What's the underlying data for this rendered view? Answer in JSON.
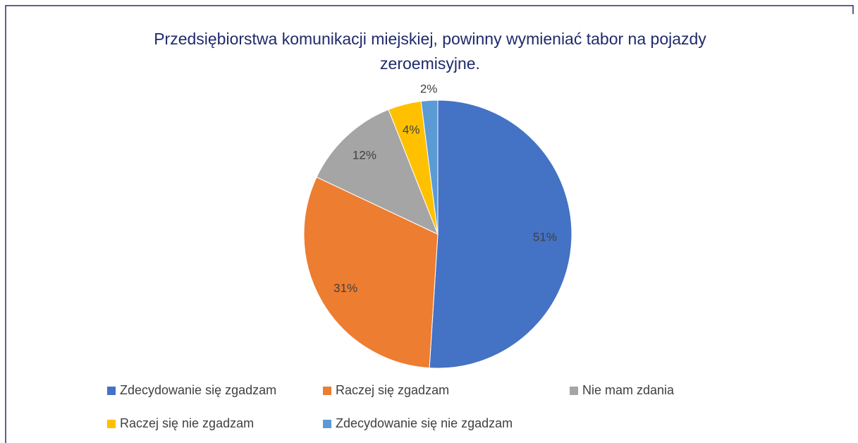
{
  "chart_data": {
    "type": "pie",
    "title": "Przedsiębiorstwa komunikacji miejskiej, powinny wymieniać tabor na pojazdy zeroemisyjne.",
    "categories": [
      "Zdecydowanie się zgadzam",
      "Raczej się zgadzam",
      "Nie mam zdania",
      "Raczej się nie zgadzam",
      "Zdecydowanie się nie zgadzam"
    ],
    "values": [
      51,
      31,
      12,
      4,
      2
    ],
    "value_labels": [
      "51%",
      "31%",
      "12%",
      "4%",
      "2%"
    ],
    "colors": [
      "#4472c4",
      "#ed7d31",
      "#a5a5a5",
      "#ffc000",
      "#5b9bd5"
    ],
    "legend": "bottom"
  }
}
